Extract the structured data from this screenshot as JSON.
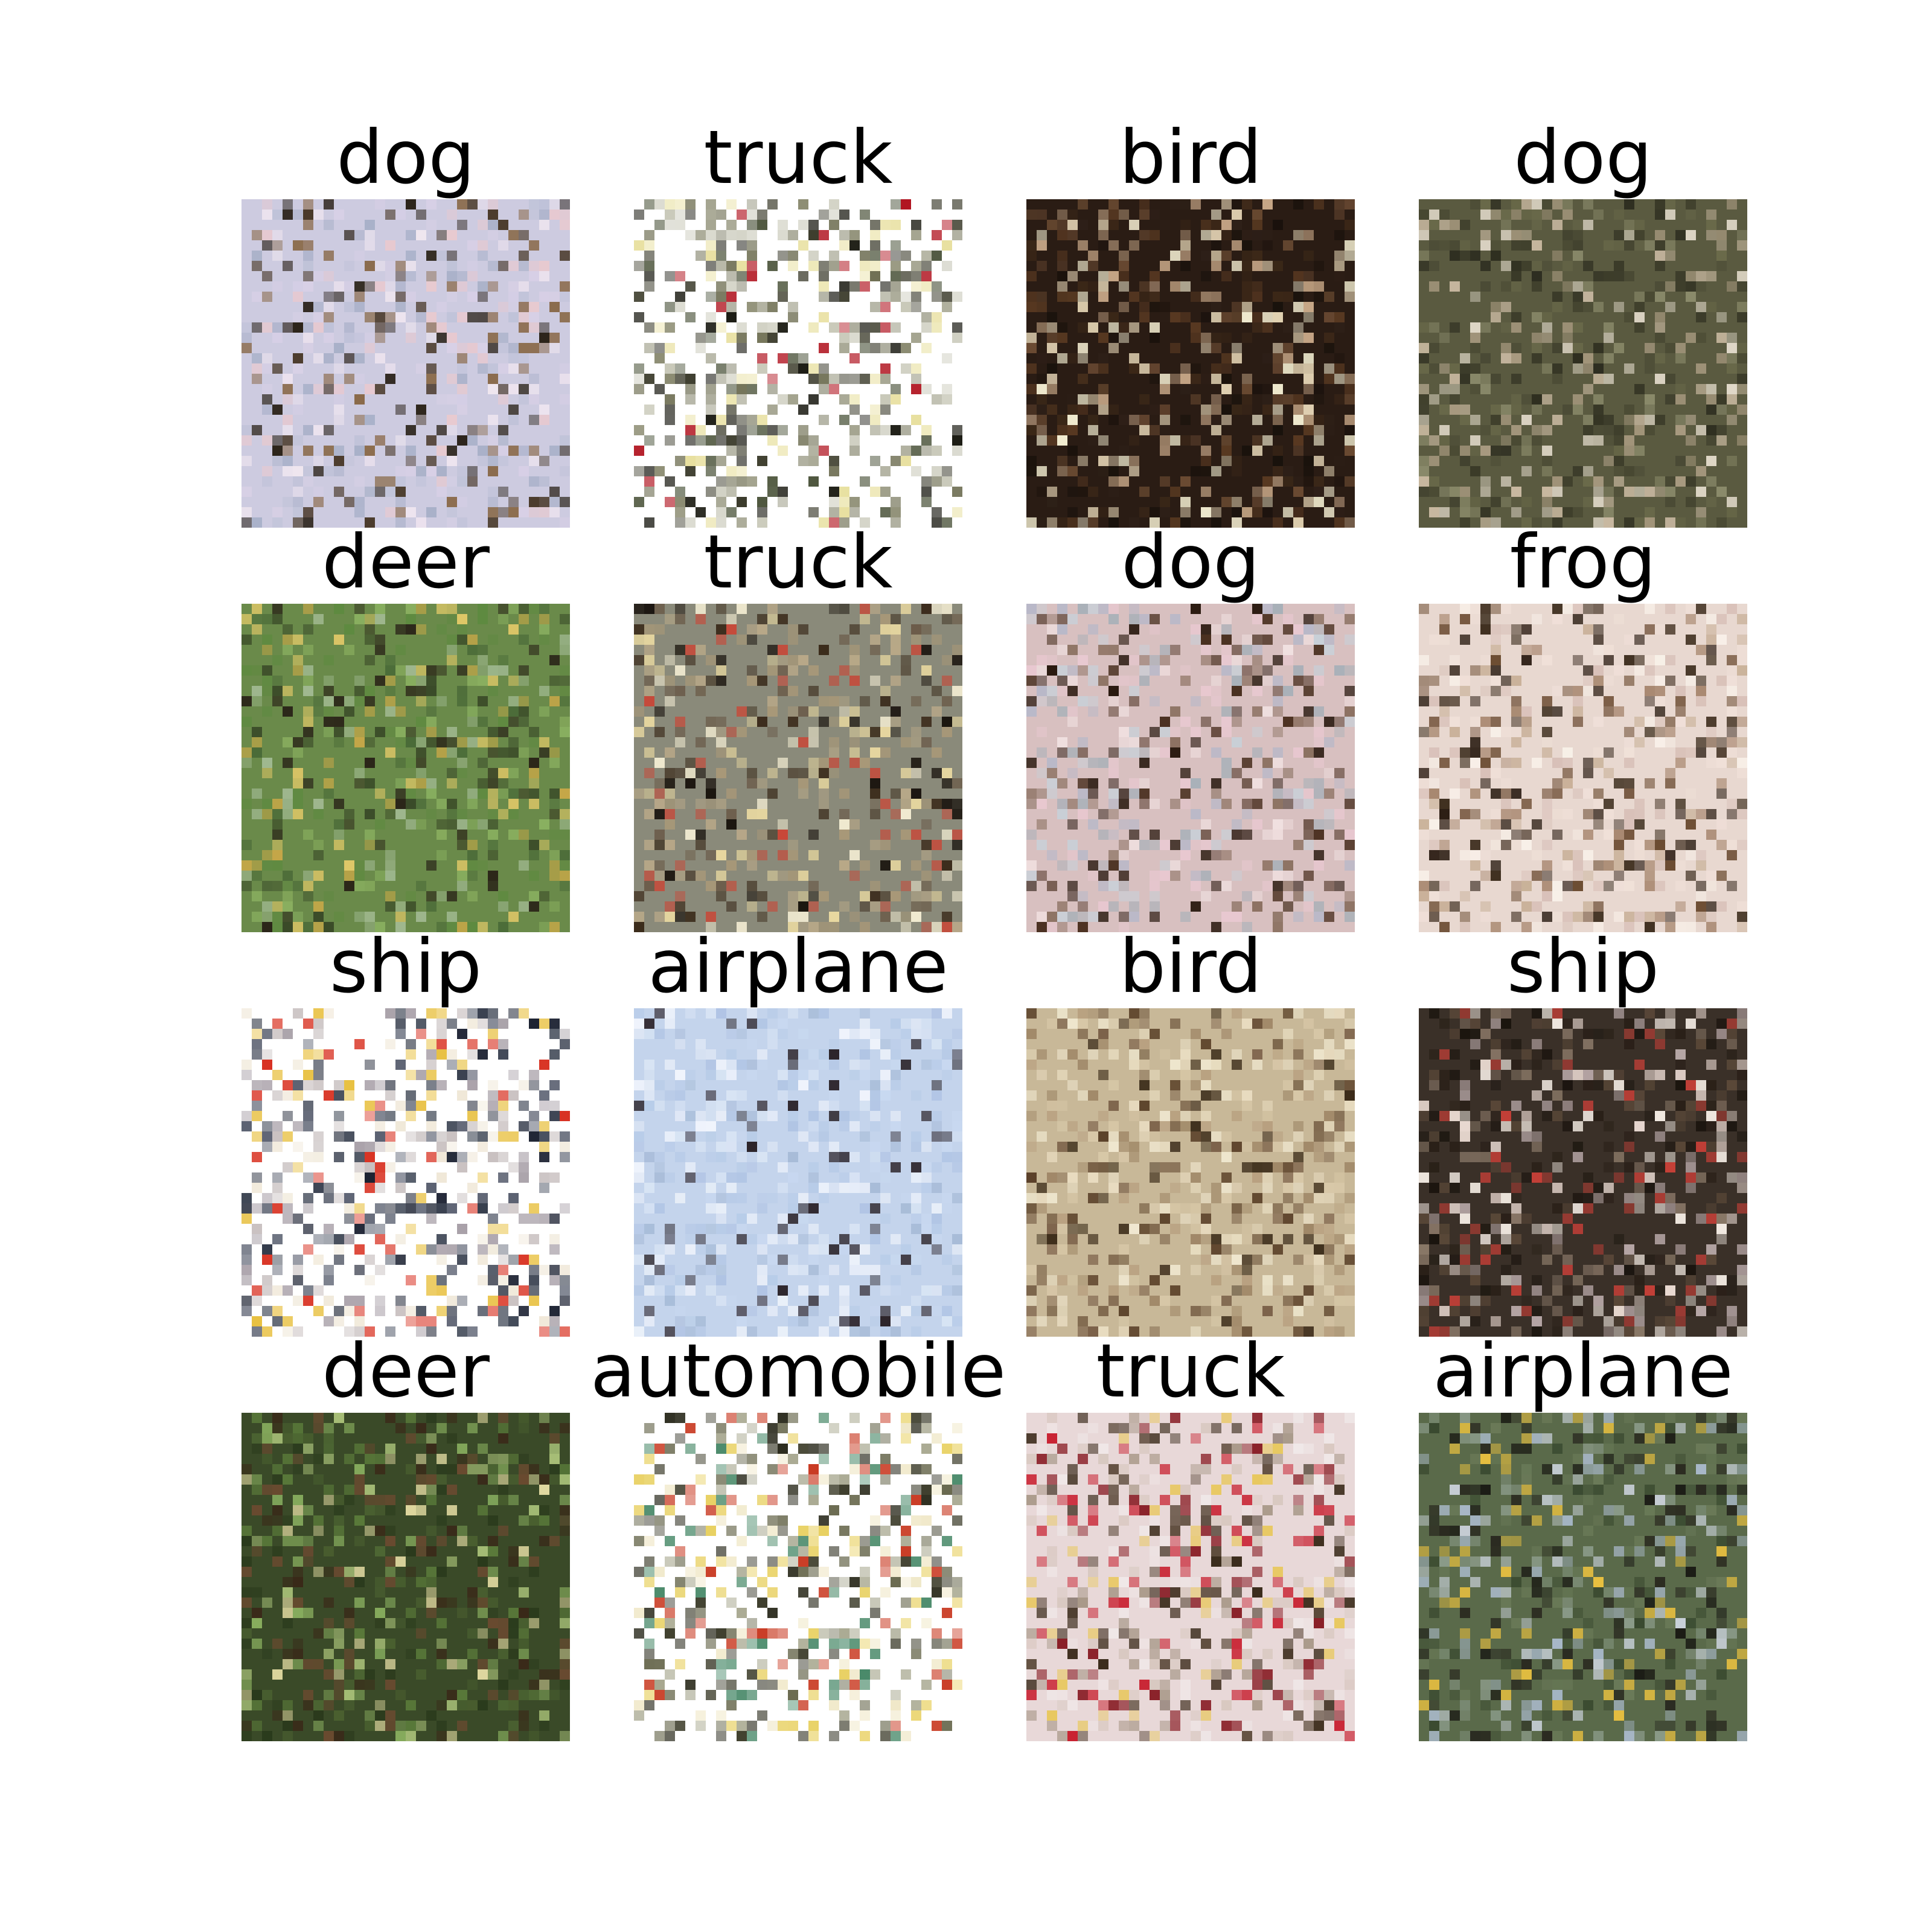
{
  "cells": [
    {
      "label": "dog",
      "bg": "#cdcbe0",
      "palette": [
        "#d8d0e6",
        "#e8c9cf",
        "#bfc2d8",
        "#4a3a2a",
        "#2a2218",
        "#8a6a4a",
        "#f0e6f0",
        "#a8b0c8"
      ]
    },
    {
      "label": "truck",
      "bg": "#ffffff",
      "palette": [
        "#6e6e52",
        "#3a3a2a",
        "#b0121e",
        "#c8c8b8",
        "#1a1a12",
        "#e8e0a0",
        "#8a8a70",
        "#505840"
      ]
    },
    {
      "label": "bird",
      "bg": "#2a1c14",
      "palette": [
        "#1a120c",
        "#3c2818",
        "#5a3a22",
        "#f2ecd0",
        "#c8a888",
        "#6a4a32",
        "#e8d8b8",
        "#2e2018"
      ]
    },
    {
      "label": "dog",
      "bg": "#5a5a40",
      "palette": [
        "#4a4a34",
        "#6a6a4a",
        "#8a8a6a",
        "#c8b8a0",
        "#2e2e20",
        "#a89a80",
        "#e0d8c8",
        "#3a3a28"
      ]
    },
    {
      "label": "deer",
      "bg": "#6a8a4a",
      "palette": [
        "#5e8a40",
        "#8ab060",
        "#3a4a28",
        "#2a2418",
        "#e0c868",
        "#a0b890",
        "#c8a848",
        "#4a6a38"
      ]
    },
    {
      "label": "truck",
      "bg": "#8a8a7a",
      "palette": [
        "#b8a888",
        "#e8d8a0",
        "#3a2a1a",
        "#c84838",
        "#f0ead0",
        "#6a5a48",
        "#1a140e",
        "#a89878"
      ]
    },
    {
      "label": "dog",
      "bg": "#d8c0c0",
      "palette": [
        "#e8c8d0",
        "#b8b8c8",
        "#4a3020",
        "#2a1a10",
        "#c8d0d8",
        "#f0e0e0",
        "#8a7060",
        "#a8b0b8"
      ]
    },
    {
      "label": "frog",
      "bg": "#e8d8d0",
      "palette": [
        "#f0e0d8",
        "#d8c0b8",
        "#3a2a1a",
        "#6a4a30",
        "#c8b098",
        "#f8f0e8",
        "#a88870",
        "#2a1c12"
      ]
    },
    {
      "label": "ship",
      "bg": "#ffffff",
      "palette": [
        "#a8a0a8",
        "#c8c0c0",
        "#303848",
        "#e8c040",
        "#d83020",
        "#f0e8d8",
        "#5a6070",
        "#1a2030"
      ]
    },
    {
      "label": "airplane",
      "bg": "#c4d4ec",
      "palette": [
        "#b8cce8",
        "#d8e4f4",
        "#c8d8f0",
        "#2a2228",
        "#e8eef8",
        "#a8bcd8",
        "#f0f4fc",
        "#b0c4e4"
      ]
    },
    {
      "label": "bird",
      "bg": "#c8b898",
      "palette": [
        "#d8c8a8",
        "#b8a080",
        "#5a4028",
        "#3a2a18",
        "#e8dcc0",
        "#a08868",
        "#f0e8d0",
        "#7a6048"
      ]
    },
    {
      "label": "ship",
      "bg": "#3a3028",
      "palette": [
        "#2a2018",
        "#5a4838",
        "#e8d8d0",
        "#b8a8a8",
        "#c84038",
        "#f0e8e0",
        "#8a7868",
        "#1a140e"
      ]
    },
    {
      "label": "deer",
      "bg": "#3a4a28",
      "palette": [
        "#2a3a1c",
        "#5a7a3a",
        "#8ab060",
        "#6a4a30",
        "#3a2818",
        "#a8c078",
        "#4a6030",
        "#e0d8a0"
      ]
    },
    {
      "label": "automobile",
      "bg": "#ffffff",
      "palette": [
        "#6a6a50",
        "#3a3a28",
        "#e8d060",
        "#c83820",
        "#a8a890",
        "#2a2a1c",
        "#4a8a6a",
        "#f0e8c8"
      ]
    },
    {
      "label": "truck",
      "bg": "#e8d8d8",
      "palette": [
        "#d8c8c0",
        "#c82030",
        "#3a2a1a",
        "#e8c860",
        "#f0e8e8",
        "#a89888",
        "#8a2028",
        "#5a4838"
      ]
    },
    {
      "label": "airplane",
      "bg": "#5a6a4a",
      "palette": [
        "#2a2a20",
        "#6a7a58",
        "#a8b8c8",
        "#e8c040",
        "#c8d0d8",
        "#3a4a30",
        "#8a9a88",
        "#1a1a14"
      ]
    }
  ]
}
